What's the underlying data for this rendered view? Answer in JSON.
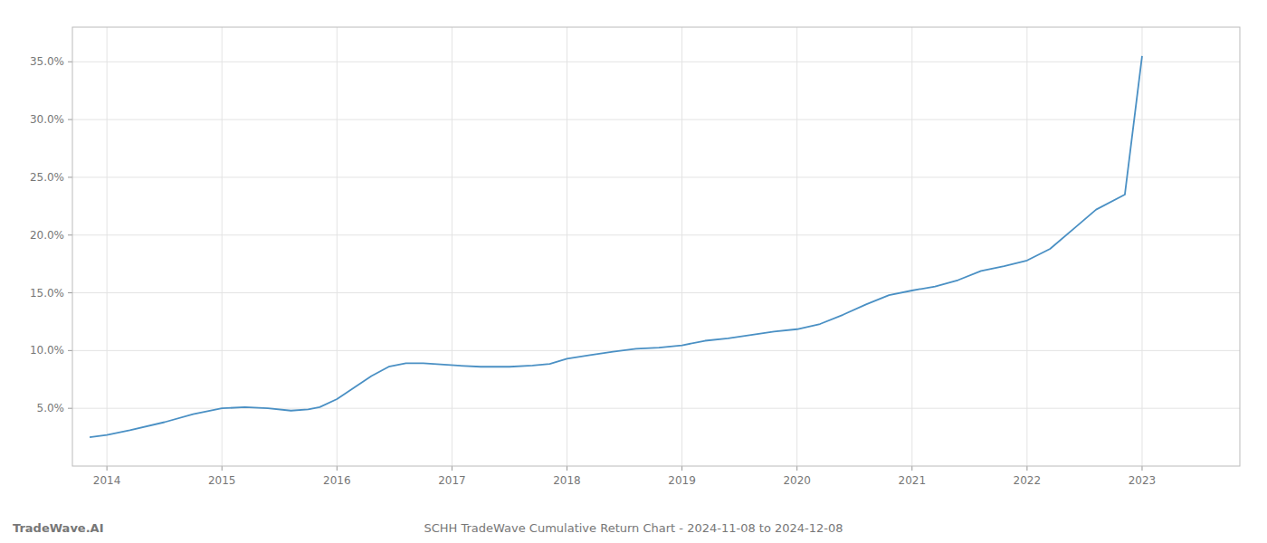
{
  "chart_data": {
    "type": "line",
    "title": "SCHH TradeWave Cumulative Return Chart - 2024-11-08 to 2024-12-08",
    "annotations": [
      "TradeWave.AI"
    ],
    "color": "#4a90c4",
    "x": [
      2013.85,
      2014.0,
      2014.2,
      2014.5,
      2014.75,
      2015.0,
      2015.2,
      2015.4,
      2015.6,
      2015.75,
      2015.85,
      2016.0,
      2016.15,
      2016.3,
      2016.45,
      2016.6,
      2016.75,
      2016.9,
      2017.05,
      2017.25,
      2017.5,
      2017.7,
      2017.85,
      2018.0,
      2018.2,
      2018.4,
      2018.6,
      2018.8,
      2019.0,
      2019.2,
      2019.4,
      2019.6,
      2019.8,
      2020.0,
      2020.2,
      2020.4,
      2020.6,
      2020.8,
      2021.0,
      2021.2,
      2021.4,
      2021.6,
      2021.8,
      2022.0,
      2022.2,
      2022.4,
      2022.6,
      2022.85,
      2023.0
    ],
    "values": [
      2.5,
      2.7,
      3.1,
      3.8,
      4.5,
      5.0,
      5.1,
      5.0,
      4.8,
      4.9,
      5.1,
      5.8,
      6.8,
      7.8,
      8.6,
      8.9,
      8.9,
      8.8,
      8.7,
      8.6,
      8.6,
      8.7,
      8.85,
      9.3,
      9.6,
      9.9,
      10.15,
      10.25,
      10.45,
      10.85,
      11.05,
      11.35,
      11.65,
      11.85,
      12.3,
      13.1,
      14.0,
      14.8,
      15.2,
      15.55,
      16.1,
      16.9,
      17.3,
      17.8,
      18.8,
      20.5,
      22.2,
      23.5,
      35.5
    ],
    "xlim": [
      2013.7,
      2023.85
    ],
    "xticks": [
      2014,
      2015,
      2016,
      2017,
      2018,
      2019,
      2020,
      2021,
      2022,
      2023
    ],
    "ylim": [
      0,
      38
    ],
    "yticks": [
      {
        "value": 5.0,
        "label": "5.0%"
      },
      {
        "value": 10.0,
        "label": "10.0%"
      },
      {
        "value": 15.0,
        "label": "15.0%"
      },
      {
        "value": 20.0,
        "label": "20.0%"
      },
      {
        "value": 25.0,
        "label": "25.0%"
      },
      {
        "value": 30.0,
        "label": "30.0%"
      },
      {
        "value": 35.0,
        "label": "35.0%"
      }
    ],
    "grid": true
  }
}
